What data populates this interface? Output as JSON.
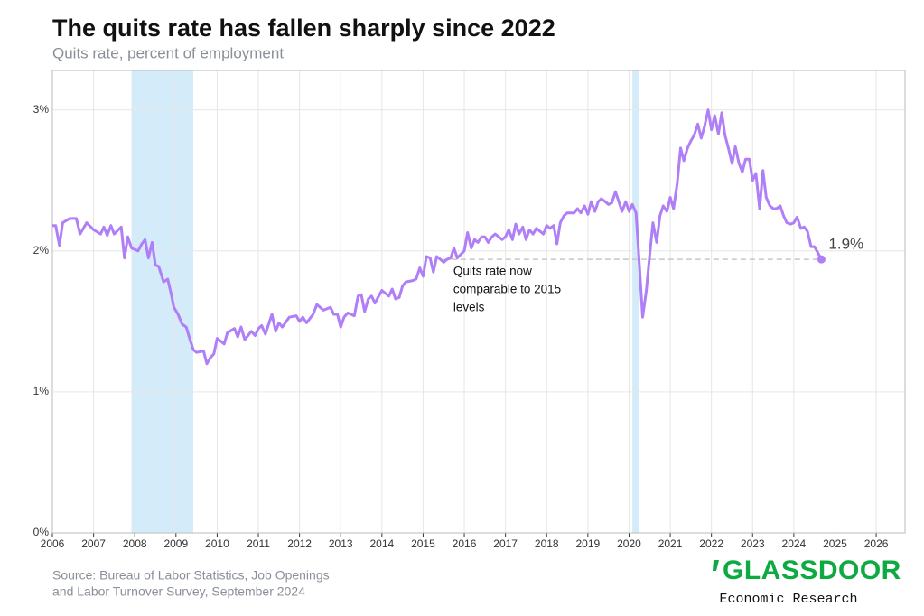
{
  "chart_data": {
    "type": "line",
    "title": "The quits rate has fallen sharply since 2022",
    "subtitle": "Quits rate, percent of employment",
    "source": [
      "Source: Bureau of Labor Statistics, Job Openings",
      "and Labor Turnover Survey, September 2024"
    ],
    "brand": {
      "name": "GLASSDOOR",
      "tagline": "Economic Research"
    },
    "color": "#b07ff7",
    "grid": true,
    "xlim": [
      2006,
      2026.7
    ],
    "xticks": [
      2006,
      2007,
      2008,
      2009,
      2010,
      2011,
      2012,
      2013,
      2014,
      2015,
      2016,
      2017,
      2018,
      2019,
      2020,
      2021,
      2022,
      2023,
      2024,
      2025,
      2026
    ],
    "ylim": [
      0,
      3.28
    ],
    "yticks": [
      {
        "value": 0,
        "label": "0%"
      },
      {
        "value": 1,
        "label": "1%"
      },
      {
        "value": 2,
        "label": "2%"
      },
      {
        "value": 3,
        "label": "3%"
      }
    ],
    "shaded_periods": [
      [
        2007.92,
        2009.42
      ],
      [
        2020.08,
        2020.25
      ]
    ],
    "reference_line": {
      "value": 1.94,
      "x_start": 2015.47
    },
    "end_label": "1.9%",
    "annotation": [
      "Quits rate now",
      "comparable to 2015",
      "levels"
    ],
    "x": [
      2006.0,
      2006.08,
      2006.17,
      2006.25,
      2006.42,
      2006.58,
      2006.67,
      2006.83,
      2007.0,
      2007.17,
      2007.25,
      2007.33,
      2007.42,
      2007.5,
      2007.67,
      2007.75,
      2007.83,
      2007.92,
      2008.08,
      2008.17,
      2008.25,
      2008.33,
      2008.42,
      2008.5,
      2008.58,
      2008.7,
      2008.8,
      2008.88,
      2008.95,
      2009.05,
      2009.15,
      2009.25,
      2009.33,
      2009.42,
      2009.5,
      2009.67,
      2009.75,
      2009.83,
      2009.92,
      2010.0,
      2010.17,
      2010.25,
      2010.42,
      2010.5,
      2010.58,
      2010.67,
      2010.83,
      2010.92,
      2011.0,
      2011.08,
      2011.17,
      2011.33,
      2011.42,
      2011.5,
      2011.58,
      2011.75,
      2011.92,
      2012.0,
      2012.08,
      2012.17,
      2012.33,
      2012.42,
      2012.5,
      2012.58,
      2012.75,
      2012.83,
      2012.92,
      2013.0,
      2013.08,
      2013.17,
      2013.33,
      2013.42,
      2013.5,
      2013.58,
      2013.67,
      2013.75,
      2013.83,
      2014.0,
      2014.08,
      2014.17,
      2014.25,
      2014.33,
      2014.42,
      2014.5,
      2014.58,
      2014.75,
      2014.83,
      2014.92,
      2015.0,
      2015.08,
      2015.17,
      2015.25,
      2015.33,
      2015.42,
      2015.5,
      2015.58,
      2015.67,
      2015.75,
      2015.83,
      2016.0,
      2016.08,
      2016.17,
      2016.25,
      2016.33,
      2016.42,
      2016.5,
      2016.58,
      2016.67,
      2016.75,
      2016.92,
      2017.0,
      2017.08,
      2017.17,
      2017.25,
      2017.33,
      2017.42,
      2017.5,
      2017.58,
      2017.67,
      2017.75,
      2017.92,
      2018.0,
      2018.08,
      2018.17,
      2018.25,
      2018.33,
      2018.42,
      2018.5,
      2018.67,
      2018.75,
      2018.83,
      2018.92,
      2019.0,
      2019.08,
      2019.17,
      2019.25,
      2019.33,
      2019.42,
      2019.5,
      2019.58,
      2019.67,
      2019.75,
      2019.83,
      2019.92,
      2020.0,
      2020.08,
      2020.17,
      2020.25,
      2020.33,
      2020.42,
      2020.5,
      2020.58,
      2020.67,
      2020.75,
      2020.83,
      2020.92,
      2021.0,
      2021.08,
      2021.17,
      2021.25,
      2021.33,
      2021.42,
      2021.5,
      2021.58,
      2021.67,
      2021.75,
      2021.83,
      2021.92,
      2022.0,
      2022.08,
      2022.17,
      2022.25,
      2022.33,
      2022.42,
      2022.5,
      2022.58,
      2022.67,
      2022.75,
      2022.83,
      2022.92,
      2023.0,
      2023.08,
      2023.17,
      2023.25,
      2023.33,
      2023.42,
      2023.5,
      2023.58,
      2023.67,
      2023.75,
      2023.83,
      2023.92,
      2024.0,
      2024.08,
      2024.17,
      2024.25,
      2024.33,
      2024.42,
      2024.5,
      2024.58,
      2024.67
    ],
    "values": [
      2.18,
      2.18,
      2.04,
      2.2,
      2.23,
      2.23,
      2.12,
      2.2,
      2.15,
      2.12,
      2.17,
      2.11,
      2.18,
      2.12,
      2.17,
      1.95,
      2.1,
      2.02,
      2.0,
      2.05,
      2.08,
      1.95,
      2.06,
      1.9,
      1.89,
      1.78,
      1.8,
      1.7,
      1.6,
      1.55,
      1.48,
      1.46,
      1.38,
      1.3,
      1.28,
      1.29,
      1.2,
      1.24,
      1.27,
      1.38,
      1.34,
      1.42,
      1.45,
      1.39,
      1.46,
      1.37,
      1.43,
      1.4,
      1.45,
      1.47,
      1.41,
      1.55,
      1.43,
      1.49,
      1.46,
      1.53,
      1.54,
      1.5,
      1.53,
      1.49,
      1.55,
      1.62,
      1.6,
      1.58,
      1.6,
      1.55,
      1.55,
      1.46,
      1.53,
      1.56,
      1.54,
      1.68,
      1.69,
      1.57,
      1.66,
      1.68,
      1.63,
      1.72,
      1.7,
      1.68,
      1.73,
      1.66,
      1.67,
      1.75,
      1.78,
      1.79,
      1.8,
      1.88,
      1.82,
      1.96,
      1.95,
      1.85,
      1.96,
      1.94,
      1.92,
      1.94,
      1.95,
      2.02,
      1.95,
      2.0,
      2.13,
      2.02,
      2.08,
      2.06,
      2.1,
      2.1,
      2.06,
      2.1,
      2.12,
      2.08,
      2.1,
      2.15,
      2.08,
      2.19,
      2.12,
      2.17,
      2.08,
      2.15,
      2.12,
      2.16,
      2.12,
      2.18,
      2.16,
      2.18,
      2.05,
      2.2,
      2.25,
      2.27,
      2.27,
      2.3,
      2.27,
      2.32,
      2.26,
      2.35,
      2.28,
      2.35,
      2.37,
      2.35,
      2.33,
      2.34,
      2.42,
      2.35,
      2.28,
      2.35,
      2.28,
      2.33,
      2.27,
      1.9,
      1.53,
      1.72,
      1.97,
      2.2,
      2.06,
      2.25,
      2.32,
      2.28,
      2.38,
      2.3,
      2.48,
      2.73,
      2.64,
      2.73,
      2.78,
      2.82,
      2.9,
      2.8,
      2.88,
      3.0,
      2.86,
      2.96,
      2.83,
      2.98,
      2.82,
      2.72,
      2.62,
      2.74,
      2.62,
      2.56,
      2.65,
      2.65,
      2.5,
      2.55,
      2.3,
      2.57,
      2.38,
      2.32,
      2.3,
      2.3,
      2.32,
      2.25,
      2.2,
      2.19,
      2.2,
      2.24,
      2.16,
      2.17,
      2.14,
      2.03,
      2.03,
      1.99,
      1.94
    ]
  }
}
